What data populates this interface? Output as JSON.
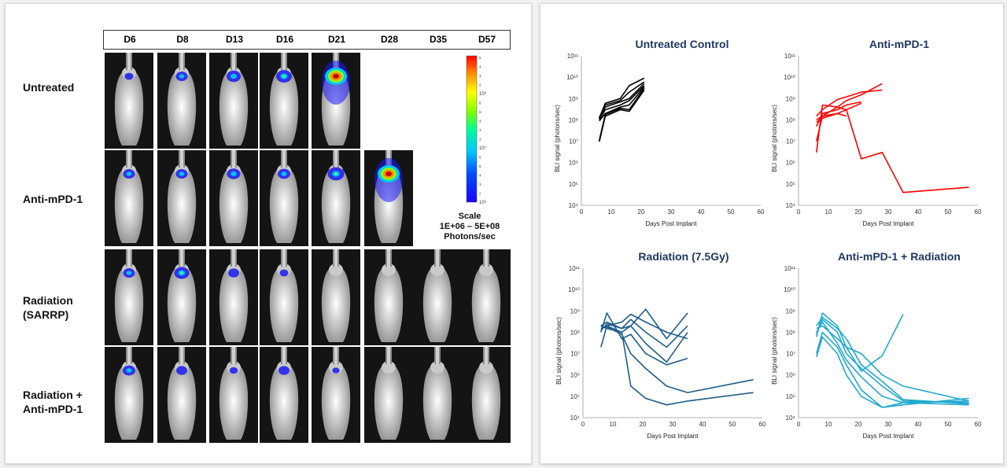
{
  "imaging": {
    "days": [
      "D6",
      "D8",
      "D13",
      "D16",
      "D21",
      "D28",
      "D35",
      "D57"
    ],
    "groups": [
      {
        "label": "Untreated",
        "signals": [
          0.15,
          0.35,
          0.5,
          0.6,
          1.0,
          null,
          null,
          null
        ]
      },
      {
        "label": "Anti-mPD-1",
        "signals": [
          0.35,
          0.35,
          0.45,
          0.4,
          0.65,
          0.95,
          null,
          null
        ]
      },
      {
        "label": "Radiation\n(SARRP)",
        "signals": [
          0.35,
          0.55,
          0.3,
          0.15,
          0.0,
          0.0,
          0.0,
          0.0
        ]
      },
      {
        "label": "Radiation  +\nAnti-mPD-1",
        "signals": [
          0.4,
          0.3,
          0.12,
          0.3,
          0.06,
          0.0,
          0.0,
          0.0
        ]
      }
    ],
    "scale": {
      "tick_labels": [
        "5",
        "4",
        "3",
        "2",
        "10⁸",
        "8",
        "6",
        "4",
        "3",
        "2",
        "10⁷",
        "8",
        "6",
        "4",
        "3",
        "2",
        "10⁶"
      ],
      "caption_lines": [
        "Scale",
        "1E+06  –  5E+08",
        "Photons/sec"
      ]
    }
  },
  "chart_data": [
    {
      "type": "line",
      "title": "Untreated Control",
      "title_color": "#1f3864",
      "line_color": "#000000",
      "xlabel": "Days Post Implant",
      "ylabel": "BLI signal (photons/sec)",
      "xlim": [
        0,
        60
      ],
      "ylim": [
        10000,
        100000000000
      ],
      "y_scale": "log",
      "xticks": [
        0,
        10,
        20,
        30,
        40,
        50,
        60
      ],
      "series": [
        {
          "x": [
            6,
            8,
            13,
            16,
            21
          ],
          "y": [
            9500000,
            150000000,
            300000000,
            250000000,
            2500000000
          ]
        },
        {
          "x": [
            6,
            8,
            13,
            16,
            21
          ],
          "y": [
            11000000,
            180000000,
            350000000,
            300000000,
            3000000000
          ]
        },
        {
          "x": [
            6,
            8,
            13,
            16,
            21
          ],
          "y": [
            90000000,
            200000000,
            400000000,
            500000000,
            3500000000
          ]
        },
        {
          "x": [
            6,
            8,
            13,
            16,
            21
          ],
          "y": [
            100000000,
            300000000,
            500000000,
            800000000,
            4000000000
          ]
        },
        {
          "x": [
            6,
            8,
            13,
            16,
            21
          ],
          "y": [
            110000000,
            400000000,
            700000000,
            1000000000,
            5000000000
          ]
        },
        {
          "x": [
            6,
            8,
            13,
            16,
            21
          ],
          "y": [
            130000000,
            500000000,
            800000000,
            2000000000,
            6000000000
          ]
        },
        {
          "x": [
            6,
            8,
            13,
            16,
            21
          ],
          "y": [
            120000000,
            600000000,
            1000000000,
            4000000000,
            9000000000
          ]
        }
      ]
    },
    {
      "type": "line",
      "title": "Anti-mPD-1",
      "title_color": "#1f3864",
      "line_color": "#ff0000",
      "xlabel": "Days Post Implant",
      "ylabel": "BLI signal (photons/sec)",
      "xlim": [
        0,
        60
      ],
      "ylim": [
        10000,
        100000000000
      ],
      "y_scale": "log",
      "xticks": [
        0,
        10,
        20,
        30,
        40,
        50,
        60
      ],
      "series": [
        {
          "x": [
            6,
            8,
            13,
            16,
            21,
            28,
            35,
            57
          ],
          "y": [
            3000000,
            500000000,
            400000000,
            300000000,
            1500000,
            3000000,
            40000,
            70000
          ]
        },
        {
          "x": [
            6,
            8,
            13,
            16,
            21
          ],
          "y": [
            10000000,
            150000000,
            200000000,
            300000000,
            600000000
          ]
        },
        {
          "x": [
            6,
            8,
            13,
            16,
            21,
            28
          ],
          "y": [
            100000000,
            150000000,
            400000000,
            800000000,
            1500000000,
            5000000000
          ]
        },
        {
          "x": [
            6,
            8,
            13,
            16,
            21
          ],
          "y": [
            50000000,
            200000000,
            300000000,
            500000000,
            700000000
          ]
        },
        {
          "x": [
            6,
            8,
            13,
            16,
            21,
            28
          ],
          "y": [
            150000000,
            300000000,
            900000000,
            1200000000,
            2000000000,
            2500000000
          ]
        },
        {
          "x": [
            6,
            8,
            13,
            16
          ],
          "y": [
            80000000,
            120000000,
            200000000,
            150000000
          ]
        }
      ]
    },
    {
      "type": "line",
      "title": "Radiation  (7.5Gy)",
      "title_color": "#1f3864",
      "line_color": "#1f5c8a",
      "xlabel": "Days Post Implant",
      "ylabel": "BLI signal (photons/sec)",
      "xlim": [
        0,
        60
      ],
      "ylim": [
        10000,
        100000000000
      ],
      "y_scale": "log",
      "xticks": [
        0,
        10,
        20,
        30,
        40,
        50,
        60
      ],
      "series": [
        {
          "x": [
            6,
            8,
            13,
            16,
            21,
            28,
            35,
            57
          ],
          "y": [
            20000000,
            200000000,
            100000000,
            300000,
            80000,
            40000,
            60000,
            150000
          ]
        },
        {
          "x": [
            6,
            8,
            13,
            16,
            21,
            28,
            35,
            57
          ],
          "y": [
            150000000,
            180000000,
            80000000,
            10000000,
            2000000,
            300000,
            150000,
            600000
          ]
        },
        {
          "x": [
            6,
            8,
            13,
            16,
            21,
            28,
            35
          ],
          "y": [
            100000000,
            800000000,
            50000000,
            80000000,
            10000000,
            3000000,
            6000000
          ]
        },
        {
          "x": [
            6,
            8,
            13,
            16,
            21,
            28,
            35
          ],
          "y": [
            200000000,
            150000000,
            100000000,
            200000000,
            30000000,
            4000000,
            100000000
          ]
        },
        {
          "x": [
            6,
            8,
            13,
            16,
            21,
            28,
            35
          ],
          "y": [
            120000000,
            250000000,
            150000000,
            400000000,
            100000000,
            20000000,
            200000000
          ]
        },
        {
          "x": [
            6,
            8,
            13,
            16,
            21,
            28,
            35
          ],
          "y": [
            200000000,
            300000000,
            150000000,
            200000000,
            1200000000,
            50000000,
            800000000
          ]
        },
        {
          "x": [
            6,
            8,
            13,
            16,
            21,
            28,
            35
          ],
          "y": [
            150000000,
            200000000,
            300000000,
            700000000,
            300000000,
            100000000,
            50000000
          ]
        }
      ]
    },
    {
      "type": "line",
      "title": "Anti-mPD-1  + Radiation",
      "title_color": "#1f3864",
      "line_color": "#20a8d0",
      "xlabel": "Days Post Implant",
      "ylabel": "BLI signal (photons/sec)",
      "xlim": [
        0,
        60
      ],
      "ylim": [
        10000,
        100000000000
      ],
      "y_scale": "log",
      "xticks": [
        0,
        10,
        20,
        30,
        40,
        50,
        60
      ],
      "series": [
        {
          "x": [
            6,
            8,
            13,
            16,
            21,
            28,
            35
          ],
          "y": [
            60000000,
            800000000,
            200000000,
            20000000,
            1500000,
            8000000,
            700000000
          ]
        },
        {
          "x": [
            6,
            8,
            13,
            16,
            21,
            28,
            35,
            57
          ],
          "y": [
            80000000,
            400000000,
            100000000,
            10000000,
            2000000,
            300000,
            60000,
            50000
          ]
        },
        {
          "x": [
            6,
            8,
            13,
            16,
            21,
            28,
            35,
            57
          ],
          "y": [
            100000000,
            300000000,
            30000000,
            5000000,
            800000,
            100000,
            50000,
            60000
          ]
        },
        {
          "x": [
            6,
            8,
            13,
            16,
            21,
            28,
            35,
            57
          ],
          "y": [
            150000000,
            200000000,
            50000000,
            20000000,
            10000000,
            1000000,
            300000,
            60000
          ]
        },
        {
          "x": [
            6,
            8,
            13,
            16,
            21,
            28,
            35,
            57
          ],
          "y": [
            10000000,
            100000000,
            20000000,
            3000000,
            200000,
            30000,
            40000,
            80000
          ]
        },
        {
          "x": [
            6,
            8,
            13,
            16,
            21,
            28,
            35,
            57
          ],
          "y": [
            200000000,
            500000000,
            150000000,
            50000000,
            3000000,
            500000,
            70000,
            45000
          ]
        },
        {
          "x": [
            6,
            8,
            13,
            16,
            21,
            28,
            35,
            57
          ],
          "y": [
            7000000,
            60000000,
            10000000,
            1000000,
            100000,
            30000,
            50000,
            40000
          ]
        }
      ]
    }
  ]
}
